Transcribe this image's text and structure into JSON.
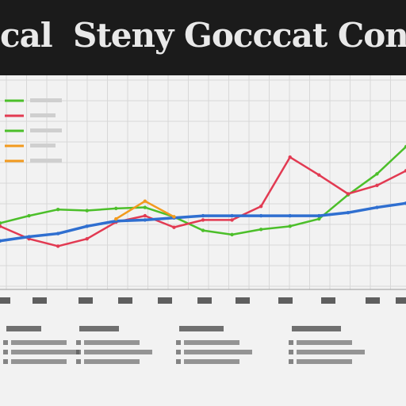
{
  "title": {
    "left": "cal",
    "main": "Steny Gocccat Cong"
  },
  "colors": {
    "background": "#1b1b1b",
    "panel": "#f2f2f2",
    "grid": "#d8d8d8",
    "green": "#4cbf2a",
    "red": "#e23a52",
    "blue": "#2f6fd0",
    "orange": "#f29a1e"
  },
  "chart_data": {
    "type": "line",
    "title": "",
    "xlabel": "",
    "ylabel": "",
    "grid": true,
    "legend_placement": "top-left",
    "x": [
      0,
      1,
      2,
      3,
      4,
      5,
      6,
      7,
      8,
      9,
      10,
      11,
      12,
      13,
      14,
      15,
      16,
      17,
      18,
      19,
      20
    ],
    "ylim": [
      0,
      100
    ],
    "series": [
      {
        "name": "",
        "color": "#4cbf2a",
        "points": [
          [
            0,
            27
          ],
          [
            1,
            34
          ],
          [
            2,
            40
          ],
          [
            3,
            39
          ],
          [
            4,
            41
          ],
          [
            5,
            42
          ],
          [
            6,
            33
          ],
          [
            7,
            20
          ],
          [
            8,
            16
          ],
          [
            9,
            21
          ],
          [
            10,
            24
          ],
          [
            11,
            31
          ],
          [
            12,
            54
          ],
          [
            13,
            74
          ],
          [
            14,
            100
          ]
        ]
      },
      {
        "name": "",
        "color": "#e23a52",
        "points": [
          [
            0,
            24
          ],
          [
            1,
            12
          ],
          [
            2,
            5
          ],
          [
            3,
            12
          ],
          [
            4,
            28
          ],
          [
            5,
            34
          ],
          [
            6,
            23
          ],
          [
            7,
            30
          ],
          [
            8,
            30
          ],
          [
            9,
            43
          ],
          [
            10,
            90
          ],
          [
            11,
            73
          ],
          [
            12,
            55
          ],
          [
            13,
            63
          ],
          [
            14,
            77
          ]
        ]
      },
      {
        "name": "",
        "color": "#2f6fd0",
        "points": [
          [
            0,
            10
          ],
          [
            1,
            14
          ],
          [
            2,
            17
          ],
          [
            3,
            24
          ],
          [
            4,
            29
          ],
          [
            5,
            30
          ],
          [
            6,
            32
          ],
          [
            7,
            34
          ],
          [
            8,
            34
          ],
          [
            9,
            34
          ],
          [
            10,
            34
          ],
          [
            11,
            34
          ],
          [
            12,
            37
          ],
          [
            13,
            42
          ],
          [
            14,
            46
          ]
        ]
      },
      {
        "name": "",
        "color": "#f29a1e",
        "points": [
          [
            4,
            31
          ],
          [
            5,
            48
          ],
          [
            6,
            33
          ]
        ]
      }
    ],
    "x_tick_labels": [
      "",
      "",
      "",
      "",
      "",
      "",
      "",
      "",
      "",
      "",
      ""
    ],
    "legend": [
      {
        "label": "",
        "color": "#4cbf2a"
      },
      {
        "label": "",
        "color": "#e23a52"
      },
      {
        "label": "",
        "color": "#4cbf2a"
      },
      {
        "label": "",
        "color": "#f29a1e"
      },
      {
        "label": "",
        "color": "#f29a1e"
      }
    ],
    "annotations": []
  }
}
